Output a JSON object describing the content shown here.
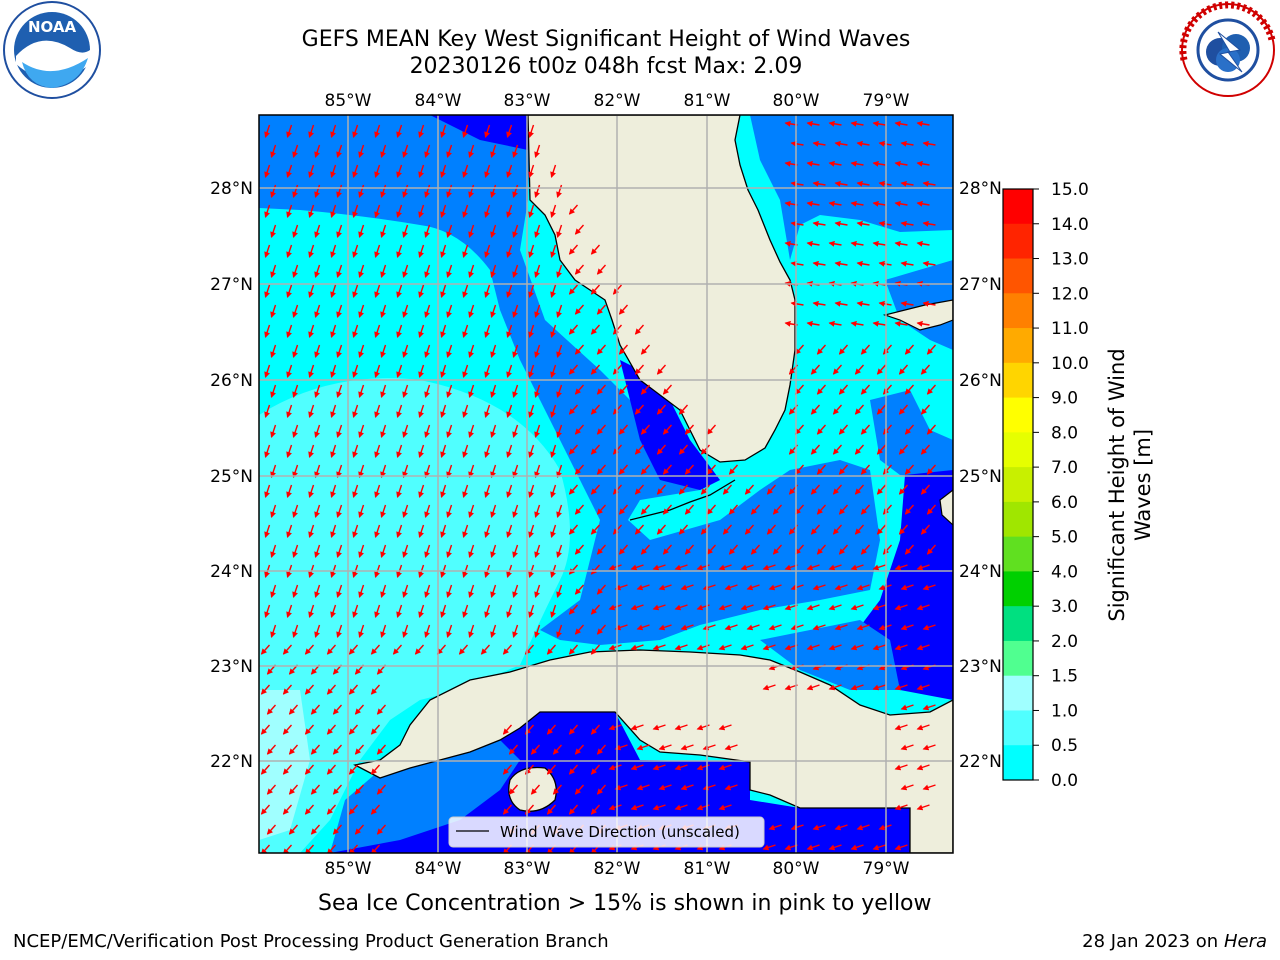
{
  "title": {
    "line1": "GEFS MEAN Key West Significant Height of Wind Waves",
    "line2": "20230126 t00z 048h fcst   Max: 2.09"
  },
  "map": {
    "lon_labels": [
      "85°W",
      "84°W",
      "83°W",
      "82°W",
      "81°W",
      "80°W",
      "79°W"
    ],
    "lat_labels": [
      "28°N",
      "27°N",
      "26°N",
      "25°N",
      "24°N",
      "23°N",
      "22°N"
    ],
    "legend_label": "Wind Wave Direction (unscaled)"
  },
  "colorbar": {
    "label_line1": "Significant Height of Wind",
    "label_line2": "Waves [m]",
    "ticks": [
      "15.0",
      "14.0",
      "13.0",
      "12.0",
      "11.0",
      "10.0",
      "9.0",
      "8.0",
      "7.0",
      "6.0",
      "5.0",
      "4.0",
      "3.0",
      "2.0",
      "1.5",
      "1.0",
      "0.5",
      "0.0"
    ],
    "colors": [
      "#ff0000",
      "#ff2400",
      "#ff5500",
      "#ff8000",
      "#ffaa00",
      "#ffd500",
      "#ffff00",
      "#e6ff00",
      "#c8f000",
      "#a0e600",
      "#60e020",
      "#00d000",
      "#00e080",
      "#50ff90",
      "#a0ffff",
      "#50ffff",
      "#00ffff",
      "#0080ff",
      "#0000ff"
    ]
  },
  "note": "Sea Ice Concentration > 15% is shown in pink to yellow",
  "footer": {
    "left": "NCEP/EMC/Verification Post Processing Product Generation Branch",
    "right_prefix": "28 Jan 2023 on ",
    "right_host": "Hera"
  },
  "logos": {
    "noaa_text": "NOAA",
    "nws_text": "NATIONAL WEATHER SERVICE"
  },
  "palette": {
    "land": "#eeeedc",
    "arrow": "#ff0000",
    "grid": "#b0b0b0"
  }
}
